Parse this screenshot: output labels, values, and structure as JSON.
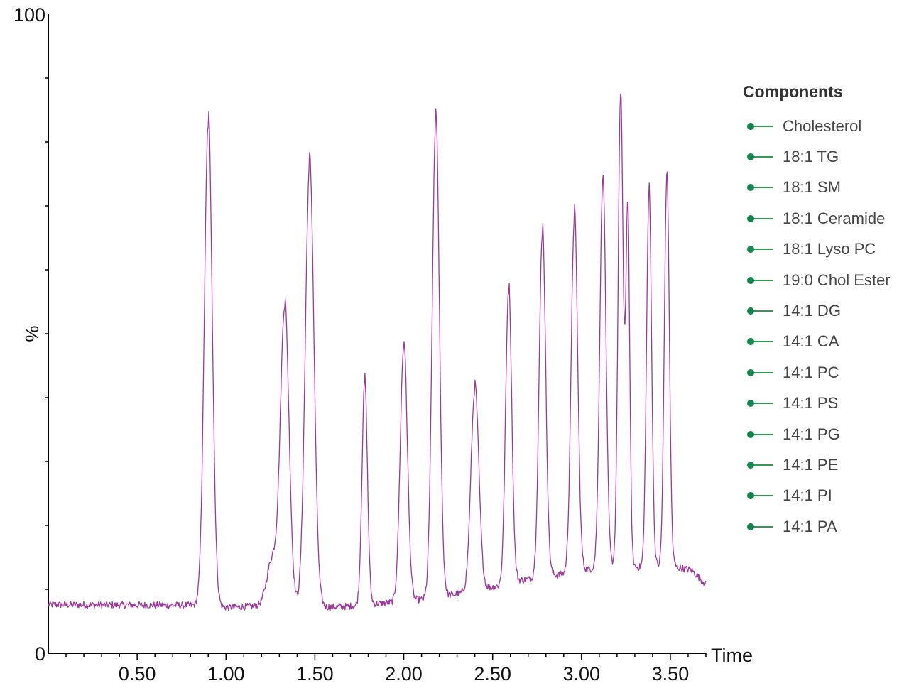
{
  "chart_data": {
    "type": "line",
    "xlabel": "Time",
    "ylabel": "%",
    "xlim": [
      0.0,
      3.7
    ],
    "ylim": [
      0,
      100
    ],
    "x_ticks": [
      {
        "value": 0.5,
        "label": "0.50"
      },
      {
        "value": 1.0,
        "label": "1.00"
      },
      {
        "value": 1.5,
        "label": "1.50"
      },
      {
        "value": 2.0,
        "label": "2.00"
      },
      {
        "value": 2.5,
        "label": "2.50"
      },
      {
        "value": 3.0,
        "label": "3.00"
      },
      {
        "value": 3.5,
        "label": "3.50"
      }
    ],
    "y_ticks": [
      {
        "value": 0,
        "label": "0"
      },
      {
        "value": 100,
        "label": "100"
      }
    ],
    "series_color": "#9c3a9c",
    "baseline": [
      [
        0.0,
        7.6
      ],
      [
        0.84,
        7.5
      ],
      [
        0.96,
        7.1
      ],
      [
        1.2,
        7.4
      ],
      [
        1.58,
        7.2
      ],
      [
        1.72,
        7.4
      ],
      [
        2.2,
        8.6
      ],
      [
        2.32,
        9.4
      ],
      [
        2.55,
        10.6
      ],
      [
        2.66,
        11.4
      ],
      [
        2.9,
        12.4
      ],
      [
        3.1,
        13.4
      ],
      [
        3.52,
        13.5
      ],
      [
        3.62,
        13.0
      ],
      [
        3.7,
        10.8
      ]
    ],
    "peaks": [
      {
        "rt": 0.9,
        "height": 96.0,
        "width": 0.022
      },
      {
        "rt": 1.26,
        "height": 16.0,
        "width": 0.03
      },
      {
        "rt": 1.33,
        "height": 62.0,
        "width": 0.024
      },
      {
        "rt": 1.47,
        "height": 88.0,
        "width": 0.024
      },
      {
        "rt": 1.78,
        "height": 48.6,
        "width": 0.015
      },
      {
        "rt": 2.0,
        "height": 55.0,
        "width": 0.02
      },
      {
        "rt": 2.18,
        "height": 96.0,
        "width": 0.02
      },
      {
        "rt": 2.4,
        "height": 46.8,
        "width": 0.022
      },
      {
        "rt": 2.59,
        "height": 65.0,
        "width": 0.017
      },
      {
        "rt": 2.78,
        "height": 75.3,
        "width": 0.018
      },
      {
        "rt": 2.96,
        "height": 78.0,
        "width": 0.018
      },
      {
        "rt": 3.12,
        "height": 84.5,
        "width": 0.017
      },
      {
        "rt": 3.22,
        "height": 100.0,
        "width": 0.014
      },
      {
        "rt": 3.26,
        "height": 78.5,
        "width": 0.011
      },
      {
        "rt": 3.38,
        "height": 82.0,
        "width": 0.014
      },
      {
        "rt": 3.48,
        "height": 85.3,
        "width": 0.014
      }
    ]
  },
  "legend": {
    "title": "Components",
    "marker_color": "#12854a",
    "line_color": "#2e9a52",
    "items": [
      "Cholesterol",
      "18:1 TG",
      "18:1 SM",
      "18:1 Ceramide",
      "18:1 Lyso PC",
      "19:0 Chol Ester",
      "14:1 DG",
      "14:1 CA",
      "14:1 PC",
      "14:1 PS",
      "14:1 PG",
      "14:1 PE",
      "14:1 PI",
      "14:1 PA"
    ]
  }
}
